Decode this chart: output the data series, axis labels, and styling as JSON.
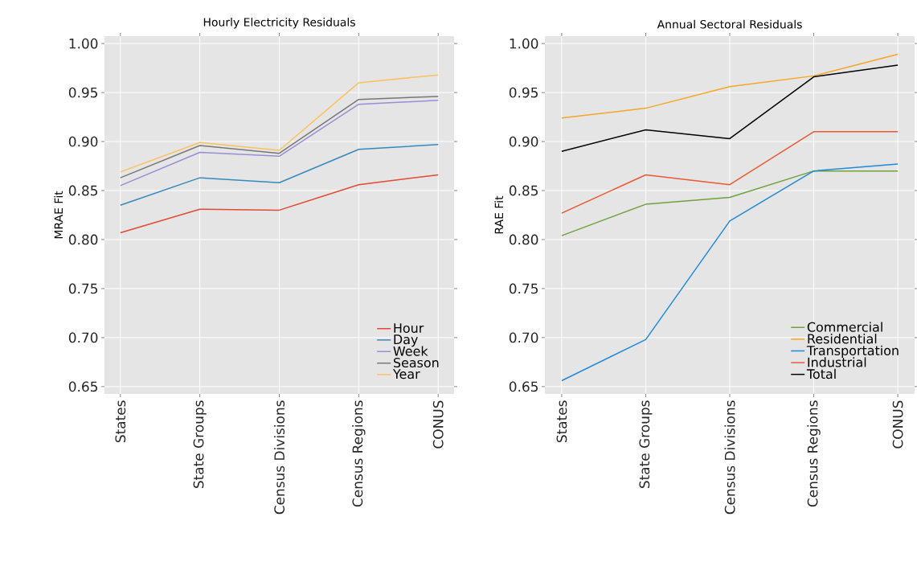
{
  "chart_data": [
    {
      "type": "line",
      "title": "Hourly Electricity Residuals",
      "ylabel": "MRAE Fit",
      "categories": [
        "States",
        "State Groups",
        "Census Divisions",
        "Census Regions",
        "CONUS"
      ],
      "series": [
        {
          "name": "Hour",
          "color": "#e24a33",
          "values": [
            0.807,
            0.831,
            0.83,
            0.856,
            0.866
          ]
        },
        {
          "name": "Day",
          "color": "#348abd",
          "values": [
            0.835,
            0.863,
            0.858,
            0.892,
            0.897
          ]
        },
        {
          "name": "Week",
          "color": "#988ed5",
          "values": [
            0.855,
            0.889,
            0.885,
            0.938,
            0.942
          ]
        },
        {
          "name": "Season",
          "color": "#777777",
          "values": [
            0.863,
            0.896,
            0.888,
            0.943,
            0.946
          ]
        },
        {
          "name": "Year",
          "color": "#fbc15e",
          "values": [
            0.869,
            0.899,
            0.891,
            0.96,
            0.968
          ]
        }
      ],
      "ylim": [
        0.6425,
        1.0075
      ],
      "yticks": [
        {
          "value": 0.65,
          "label": "0.65"
        },
        {
          "value": 0.7,
          "label": "0.70"
        },
        {
          "value": 0.75,
          "label": "0.75"
        },
        {
          "value": 0.8,
          "label": "0.80"
        },
        {
          "value": 0.85,
          "label": "0.85"
        },
        {
          "value": 0.9,
          "label": "0.90"
        },
        {
          "value": 0.95,
          "label": "0.95"
        },
        {
          "value": 1.0,
          "label": "1.00"
        }
      ],
      "grid": true,
      "legend": "bottom right"
    },
    {
      "type": "line",
      "title": "Annual Sectoral Residuals",
      "ylabel": "RAE Fit",
      "categories": [
        "States",
        "State Groups",
        "Census Divisions",
        "Census Regions",
        "CONUS"
      ],
      "series": [
        {
          "name": "Commercial",
          "color": "#6ea33a",
          "values": [
            0.804,
            0.836,
            0.843,
            0.87,
            0.87
          ]
        },
        {
          "name": "Residential",
          "color": "#f5a623",
          "values": [
            0.924,
            0.934,
            0.956,
            0.967,
            0.989
          ]
        },
        {
          "name": "Transportation",
          "color": "#1f8ad6",
          "values": [
            0.656,
            0.698,
            0.819,
            0.87,
            0.877
          ]
        },
        {
          "name": "Industrial",
          "color": "#e85a30",
          "values": [
            0.827,
            0.866,
            0.856,
            0.91,
            0.91
          ]
        },
        {
          "name": "Total",
          "color": "#000000",
          "values": [
            0.89,
            0.912,
            0.903,
            0.966,
            0.978
          ]
        }
      ],
      "ylim": [
        0.6425,
        1.0075
      ],
      "yticks": [
        {
          "value": 0.65,
          "label": "0.65"
        },
        {
          "value": 0.7,
          "label": "0.70"
        },
        {
          "value": 0.75,
          "label": "0.75"
        },
        {
          "value": 0.8,
          "label": "0.80"
        },
        {
          "value": 0.85,
          "label": "0.85"
        },
        {
          "value": 0.9,
          "label": "0.90"
        },
        {
          "value": 0.95,
          "label": "0.95"
        },
        {
          "value": 1.0,
          "label": "1.00"
        }
      ],
      "grid": true,
      "legend": "bottom right"
    }
  ]
}
